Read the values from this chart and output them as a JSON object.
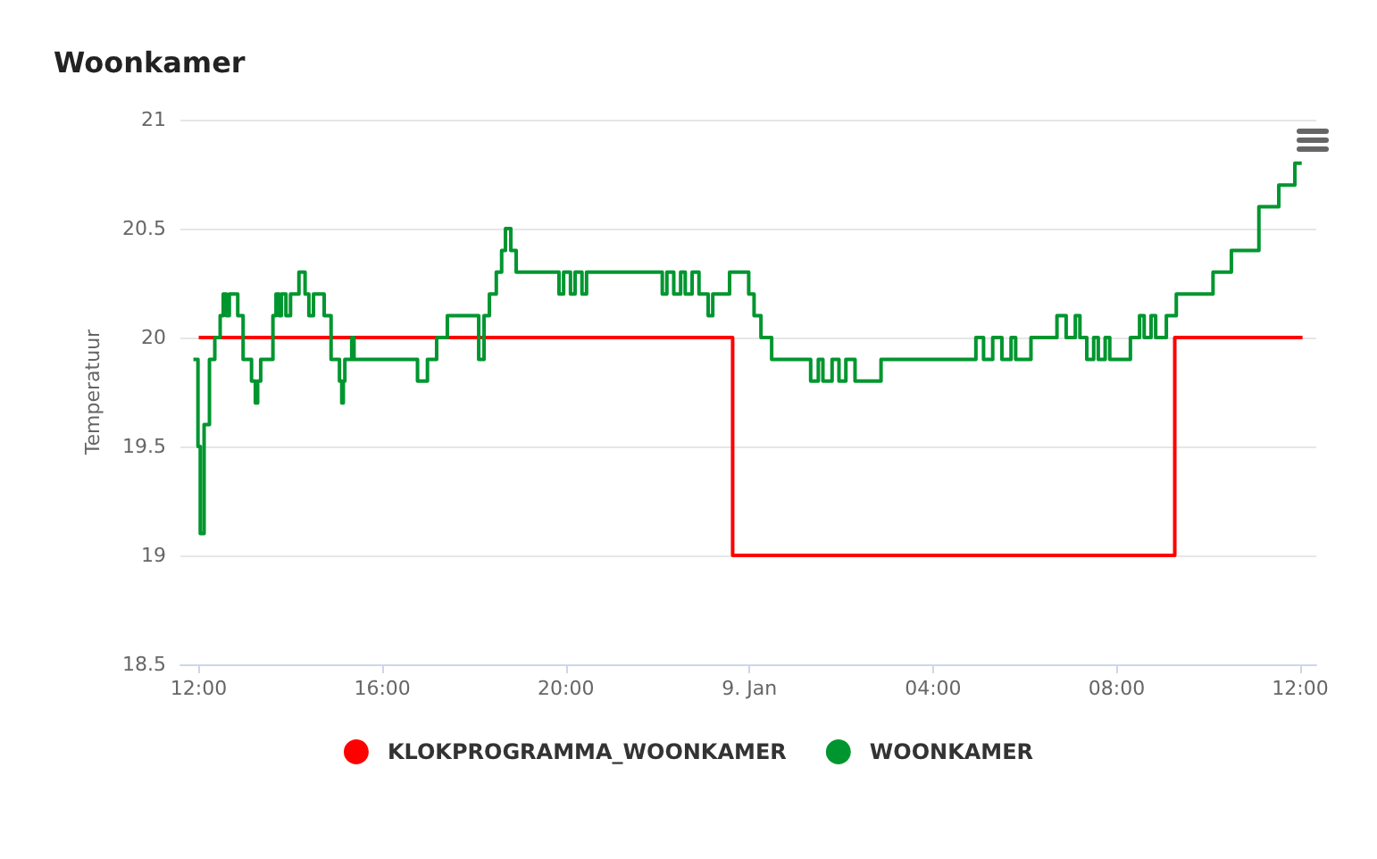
{
  "chart_data": {
    "type": "step",
    "title": "Woonkamer",
    "ylabel": "Temperatuur",
    "xlim": [
      "--01-08T11:36",
      "--01-09T12:21"
    ],
    "xticks": [
      {
        "value": "--01-08T12:00",
        "label": "12:00"
      },
      {
        "value": "--01-08T16:00",
        "label": "16:00"
      },
      {
        "value": "--01-08T20:00",
        "label": "20:00"
      },
      {
        "value": "--01-09T00:00",
        "label": "9. Jan"
      },
      {
        "value": "--01-09T04:00",
        "label": "04:00"
      },
      {
        "value": "--01-09T08:00",
        "label": "08:00"
      },
      {
        "value": "--01-09T12:00",
        "label": "12:00"
      }
    ],
    "ylim": [
      18.5,
      21
    ],
    "yticks": [
      18.5,
      19,
      19.5,
      20,
      20.5,
      21
    ],
    "grid": "y",
    "legend": "bottom",
    "marker": "none",
    "line_style": "solid",
    "series": [
      {
        "name": "KLOKPROGRAMMA_WOONKAMER",
        "color": "#ff0000",
        "x": [
          "--01-08T12:00",
          "--01-08T23:38",
          "--01-09T09:16",
          "--01-09T12:03"
        ],
        "values": [
          20,
          19,
          20,
          20
        ]
      },
      {
        "name": "WOONKAMER",
        "color": "#00962f",
        "x": [
          "--01-08T11:53",
          "--01-08T11:59",
          "--01-08T12:02",
          "--01-08T12:07",
          "--01-08T12:14",
          "--01-08T12:21",
          "--01-08T12:28",
          "--01-08T12:32",
          "--01-08T12:36",
          "--01-08T12:40",
          "--01-08T12:43",
          "--01-08T12:51",
          "--01-08T12:58",
          "--01-08T13:09",
          "--01-08T13:14",
          "--01-08T13:17",
          "--01-08T13:21",
          "--01-08T13:25",
          "--01-08T13:37",
          "--01-08T13:41",
          "--01-08T13:45",
          "--01-08T13:48",
          "--01-08T13:54",
          "--01-08T14:00",
          "--01-08T14:11",
          "--01-08T14:19",
          "--01-08T14:24",
          "--01-08T14:30",
          "--01-08T14:36",
          "--01-08T14:44",
          "--01-08T14:53",
          "--01-08T15:04",
          "--01-08T15:07",
          "--01-08T15:09",
          "--01-08T15:11",
          "--01-08T15:20",
          "--01-08T15:23",
          "--01-08T16:46",
          "--01-08T16:48",
          "--01-08T16:59",
          "--01-08T17:11",
          "--01-08T17:25",
          "--01-08T18:06",
          "--01-08T18:13",
          "--01-08T18:20",
          "--01-08T18:29",
          "--01-08T18:36",
          "--01-08T18:41",
          "--01-08T18:48",
          "--01-08T18:55",
          "--01-08T19:06",
          "--01-08T19:51",
          "--01-08T19:57",
          "--01-08T20:06",
          "--01-08T20:12",
          "--01-08T20:21",
          "--01-08T20:27",
          "--01-08T22:06",
          "--01-08T22:12",
          "--01-08T22:21",
          "--01-08T22:30",
          "--01-08T22:36",
          "--01-08T22:45",
          "--01-08T22:54",
          "--01-08T23:06",
          "--01-08T23:12",
          "--01-08T23:21",
          "--01-08T23:34",
          "--01-08T23:59",
          "--01-09T00:06",
          "--01-09T00:15",
          "--01-09T00:29",
          "--01-09T01:20",
          "--01-09T01:30",
          "--01-09T01:36",
          "--01-09T01:48",
          "--01-09T01:57",
          "--01-09T02:06",
          "--01-09T02:18",
          "--01-09T02:30",
          "--01-09T02:52",
          "--01-09T04:56",
          "--01-09T05:06",
          "--01-09T05:18",
          "--01-09T05:30",
          "--01-09T05:42",
          "--01-09T05:48",
          "--01-09T06:08",
          "--01-09T06:42",
          "--01-09T06:54",
          "--01-09T07:06",
          "--01-09T07:12",
          "--01-09T07:21",
          "--01-09T07:30",
          "--01-09T07:36",
          "--01-09T07:45",
          "--01-09T07:51",
          "--01-09T08:18",
          "--01-09T08:30",
          "--01-09T08:36",
          "--01-09T08:45",
          "--01-09T08:51",
          "--01-09T09:05",
          "--01-09T09:18",
          "--01-09T10:06",
          "--01-09T10:30",
          "--01-09T11:06",
          "--01-09T11:32",
          "--01-09T11:53",
          "--01-09T12:02"
        ],
        "values": [
          19.9,
          19.5,
          19.1,
          19.6,
          19.9,
          20,
          20.1,
          20.2,
          20.1,
          20.2,
          20.2,
          20.1,
          19.9,
          19.8,
          19.7,
          19.8,
          19.9,
          19.9,
          20.1,
          20.2,
          20.1,
          20.2,
          20.1,
          20.2,
          20.3,
          20.2,
          20.1,
          20.2,
          20.2,
          20.1,
          19.9,
          19.8,
          19.7,
          19.8,
          19.9,
          20,
          19.9,
          19.8,
          19.8,
          19.9,
          20,
          20.1,
          19.9,
          20.1,
          20.2,
          20.3,
          20.4,
          20.5,
          20.4,
          20.3,
          20.3,
          20.2,
          20.3,
          20.2,
          20.3,
          20.2,
          20.3,
          20.2,
          20.3,
          20.2,
          20.3,
          20.2,
          20.3,
          20.2,
          20.1,
          20.2,
          20.2,
          20.3,
          20.2,
          20.1,
          20,
          19.9,
          19.8,
          19.9,
          19.8,
          19.9,
          19.8,
          19.9,
          19.8,
          19.8,
          19.9,
          20,
          19.9,
          20,
          19.9,
          20,
          19.9,
          20,
          20.1,
          20,
          20.1,
          20,
          19.9,
          20,
          19.9,
          20,
          19.9,
          20,
          20.1,
          20,
          20.1,
          20,
          20.1,
          20.2,
          20.3,
          20.4,
          20.6,
          20.7,
          20.8,
          20.8
        ]
      }
    ]
  }
}
